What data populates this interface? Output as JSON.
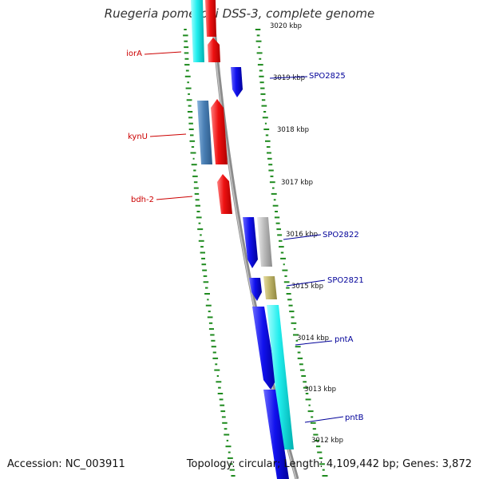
{
  "title": "Ruegeria pomeroyi DSS-3, complete genome",
  "footer": {
    "accession_label": "Accession:",
    "accession": "NC_003911",
    "topology_label": "Topology:",
    "topology": "circular",
    "length_label": "Length:",
    "length": "4,109,442 bp",
    "genes_label": "Genes:",
    "genes": "3,872"
  },
  "kbp_labels": [
    "3020 kbp",
    "3019 kbp",
    "3018 kbp",
    "3017 kbp",
    "3016 kbp",
    "3015 kbp",
    "3014 kbp",
    "3013 kbp",
    "3012 kbp"
  ],
  "gene_labels_left": [
    "iorA",
    "kynU",
    "bdh-2"
  ],
  "gene_labels_right": [
    "SPO2825",
    "SPO2822",
    "SPO2821",
    "pntA",
    "pntB"
  ],
  "colors": {
    "backbone": "#8c8c8c",
    "gc_ticks": "#1e8a1e",
    "left_label": "#cc0000",
    "right_label": "#000099",
    "red_gene": "#ee1111",
    "blue_gene": "#1111ee",
    "cyan_gene": "#22eeee",
    "steelblue_gene": "#4a7fb5",
    "grey_gene": "#bdbdbd",
    "olive_gene": "#bfb56a"
  }
}
